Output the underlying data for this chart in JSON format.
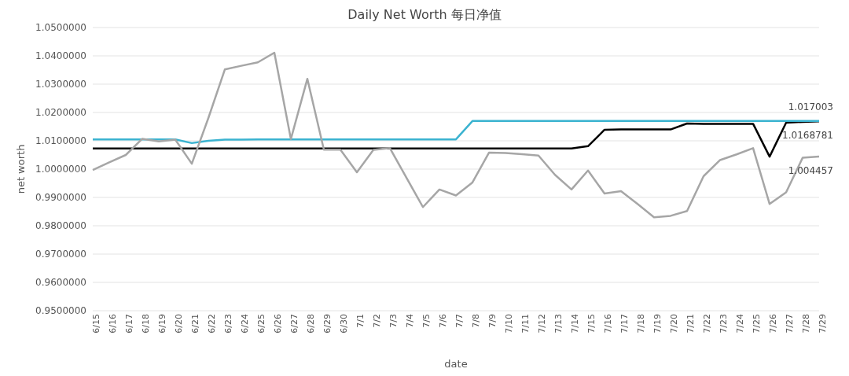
{
  "chart_data": {
    "type": "line",
    "title": "Daily Net Worth 每日净值",
    "xlabel": "date",
    "ylabel": "net worth",
    "categories": [
      "6/15",
      "6/16",
      "6/17",
      "6/18",
      "6/19",
      "6/20",
      "6/21",
      "6/22",
      "6/23",
      "6/24",
      "6/25",
      "6/26",
      "6/27",
      "6/28",
      "6/29",
      "6/30",
      "7/1",
      "7/2",
      "7/3",
      "7/4",
      "7/5",
      "7/6",
      "7/7",
      "7/8",
      "7/9",
      "7/10",
      "7/11",
      "7/12",
      "7/13",
      "7/14",
      "7/15",
      "7/16",
      "7/17",
      "7/18",
      "7/19",
      "7/20",
      "7/21",
      "7/22",
      "7/23",
      "7/24",
      "7/25",
      "7/26",
      "7/27",
      "7/28",
      "7/29"
    ],
    "series": [
      {
        "color": "#000000",
        "values": [
          1.0073,
          1.0073,
          1.0073,
          1.0073,
          1.0073,
          1.0073,
          1.0073,
          1.0073,
          1.0073,
          1.0073,
          1.0073,
          1.0073,
          1.0073,
          1.0073,
          1.0073,
          1.0073,
          1.0073,
          1.0073,
          1.0073,
          1.0073,
          1.0073,
          1.0073,
          1.0073,
          1.0073,
          1.0073,
          1.0073,
          1.0073,
          1.0073,
          1.0073,
          1.0073,
          1.0081,
          1.0139,
          1.014,
          1.014,
          1.014,
          1.014,
          1.0161,
          1.016,
          1.016,
          1.016,
          1.016,
          1.0044,
          1.0164,
          1.0167,
          1.0168781
        ],
        "value_labels": [
          null,
          null,
          null,
          null,
          null,
          null,
          null,
          null,
          null,
          null,
          null,
          null,
          null,
          null,
          null,
          null,
          null,
          null,
          null,
          null,
          null,
          null,
          null,
          null,
          null,
          null,
          null,
          null,
          null,
          null,
          null,
          null,
          null,
          null,
          null,
          null,
          null,
          null,
          null,
          null,
          null,
          null,
          null,
          null,
          "1.0168781"
        ]
      },
      {
        "color": "#3bb3d0",
        "values": [
          1.0105,
          1.0105,
          1.0105,
          1.0105,
          1.0105,
          1.0105,
          1.0092,
          1.01,
          1.0104,
          1.0104,
          1.0105,
          1.0105,
          1.0105,
          1.0105,
          1.0105,
          1.0105,
          1.0105,
          1.0105,
          1.0105,
          1.0105,
          1.0105,
          1.0105,
          1.0105,
          1.017,
          1.017,
          1.017,
          1.017,
          1.017,
          1.017,
          1.017,
          1.017,
          1.017,
          1.017,
          1.017,
          1.017,
          1.017,
          1.017,
          1.017,
          1.017,
          1.017,
          1.017,
          1.017,
          1.017,
          1.017,
          1.017003
        ],
        "value_labels": [
          null,
          null,
          null,
          null,
          null,
          null,
          null,
          null,
          null,
          null,
          null,
          null,
          null,
          null,
          null,
          null,
          null,
          null,
          null,
          null,
          null,
          null,
          null,
          null,
          null,
          null,
          null,
          null,
          null,
          null,
          null,
          null,
          null,
          null,
          null,
          null,
          null,
          null,
          null,
          null,
          null,
          null,
          null,
          null,
          "1.017003"
        ]
      },
      {
        "color": "#a6a6a6",
        "values": [
          0.9997,
          1.0024,
          1.005,
          1.0107,
          1.0098,
          1.0104,
          1.0019,
          1.018,
          1.0352,
          1.0365,
          1.0377,
          1.0411,
          1.0106,
          1.0319,
          1.0069,
          1.0069,
          0.9989,
          1.0068,
          1.0074,
          0.997,
          0.9866,
          0.9928,
          0.9907,
          0.9953,
          1.0058,
          1.0057,
          1.0053,
          1.0048,
          0.998,
          0.9928,
          0.9995,
          0.9914,
          0.9922,
          0.9877,
          0.983,
          0.9835,
          0.9852,
          0.9975,
          1.0032,
          1.0052,
          1.0074,
          0.9877,
          0.9918,
          1.004,
          1.004457
        ],
        "value_labels": [
          null,
          null,
          null,
          null,
          null,
          null,
          null,
          null,
          null,
          null,
          null,
          null,
          null,
          null,
          null,
          null,
          null,
          null,
          null,
          null,
          null,
          null,
          null,
          null,
          null,
          null,
          null,
          null,
          null,
          null,
          null,
          null,
          null,
          null,
          null,
          null,
          null,
          null,
          null,
          null,
          null,
          null,
          null,
          null,
          "1.004457"
        ]
      }
    ],
    "ylim": [
      0.95,
      1.05
    ],
    "yticks": [
      {
        "value": 0.95,
        "label": "0.9500000"
      },
      {
        "value": 0.96,
        "label": "0.9600000"
      },
      {
        "value": 0.97,
        "label": "0.9700000"
      },
      {
        "value": 0.98,
        "label": "0.9800000"
      },
      {
        "value": 0.99,
        "label": "0.9900000"
      },
      {
        "value": 1.0,
        "label": "1.0000000"
      },
      {
        "value": 1.01,
        "label": "1.0100000"
      },
      {
        "value": 1.02,
        "label": "1.0200000"
      },
      {
        "value": 1.03,
        "label": "1.0300000"
      },
      {
        "value": 1.04,
        "label": "1.0400000"
      },
      {
        "value": 1.05,
        "label": "1.0500000"
      }
    ],
    "grid": "y",
    "marker": "none",
    "line_style": "solid"
  }
}
